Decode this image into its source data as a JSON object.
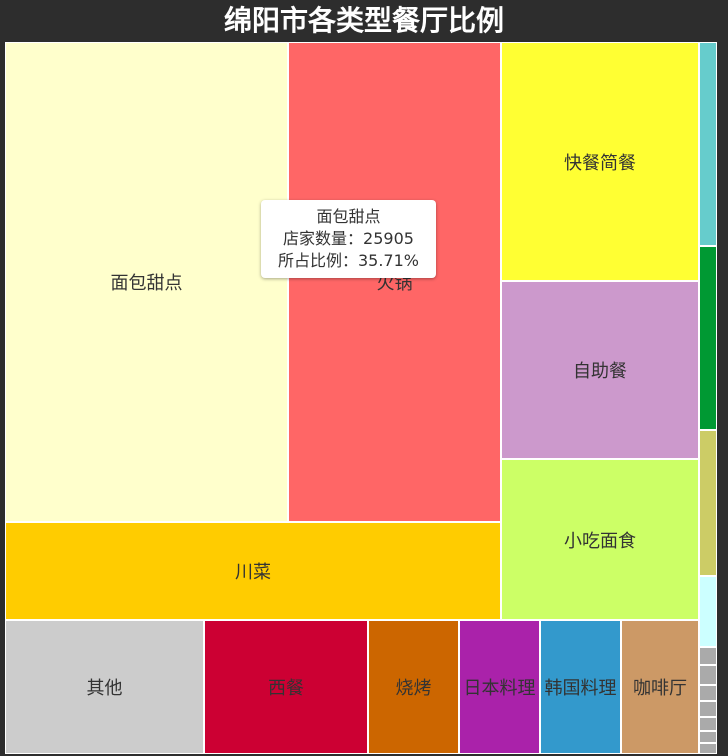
{
  "title": "绵阳市各类型餐厅比例",
  "tooltip": {
    "name": "面包甜点",
    "count_label": "店家数量：25905",
    "ratio_label": "所占比例：35.71%"
  },
  "chart_data": {
    "type": "treemap",
    "title": "绵阳市各类型餐厅比例",
    "categories": [
      "面包甜点",
      "火锅",
      "快餐简餐",
      "自助餐",
      "小吃面食",
      "川菜",
      "其他",
      "西餐",
      "烧烤",
      "日本料理",
      "韩国料理",
      "咖啡厅"
    ],
    "labels_shown": [
      "面包甜点",
      "火锅",
      "快餐简餐",
      "自助餐",
      "小吃面食",
      "川菜",
      "其他",
      "西餐",
      "烧烤",
      "日本料理",
      "韩国料理",
      "咖啡厅"
    ],
    "colors": [
      "#ffffcc",
      "#ff6666",
      "#ffff33",
      "#cc99cc",
      "#ccff66",
      "#ffcc00",
      "#cccccc",
      "#cc0033",
      "#cc6600",
      "#aa22aa",
      "#3399cc",
      "#cc9966"
    ],
    "highlight": {
      "name": "面包甜点",
      "count": 25905,
      "percent": 35.71
    },
    "strip_colors": [
      "#66cccc",
      "#009933",
      "#cccc66",
      "#ccffff",
      "#aaaaaa",
      "#aaaaaa",
      "#aaaaaa",
      "#aaaaaa",
      "#aaaaaa",
      "#aaaaaa",
      "#aaaaaa"
    ]
  }
}
